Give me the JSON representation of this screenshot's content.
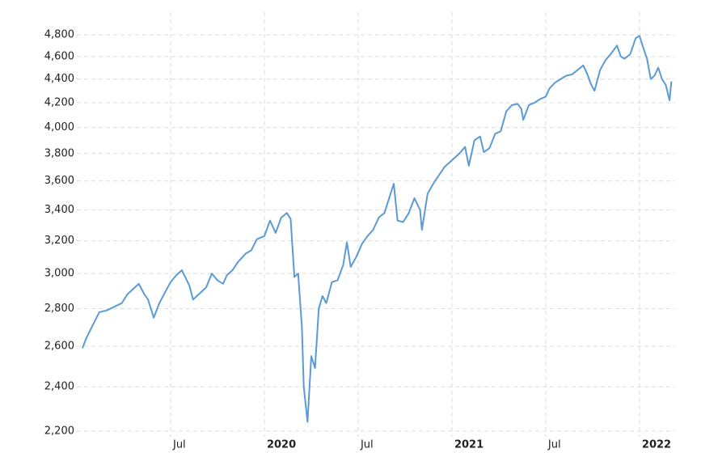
{
  "chart_data": {
    "type": "line",
    "log_scale": true,
    "grid": true,
    "xlim": [
      2019.0,
      2022.19
    ],
    "ylim": [
      2175,
      5020
    ],
    "xticks": [
      {
        "value": 2019.5,
        "label": "Jul"
      },
      {
        "value": 2020,
        "label": "2020"
      },
      {
        "value": 2020.5,
        "label": "Jul"
      },
      {
        "value": 2021,
        "label": "2021"
      },
      {
        "value": 2021.5,
        "label": "Jul"
      },
      {
        "value": 2022,
        "label": "2022"
      }
    ],
    "yticks": [
      {
        "value": 2200,
        "label": "2,200"
      },
      {
        "value": 2400,
        "label": "2,400"
      },
      {
        "value": 2600,
        "label": "2,600"
      },
      {
        "value": 2800,
        "label": "2,800"
      },
      {
        "value": 3000,
        "label": "3,000"
      },
      {
        "value": 3200,
        "label": "3,200"
      },
      {
        "value": 3400,
        "label": "3,400"
      },
      {
        "value": 3600,
        "label": "3,600"
      },
      {
        "value": 3800,
        "label": "3,800"
      },
      {
        "value": 4000,
        "label": "4,000"
      },
      {
        "value": 4200,
        "label": "4,200"
      },
      {
        "value": 4400,
        "label": "4,400"
      },
      {
        "value": 4600,
        "label": "4,600"
      },
      {
        "value": 4800,
        "label": "4,800"
      }
    ],
    "x": [
      2019.03,
      2019.05,
      2019.08,
      2019.12,
      2019.16,
      2019.2,
      2019.24,
      2019.27,
      2019.3,
      2019.33,
      2019.36,
      2019.38,
      2019.41,
      2019.44,
      2019.47,
      2019.5,
      2019.53,
      2019.56,
      2019.6,
      2019.62,
      2019.66,
      2019.69,
      2019.72,
      2019.75,
      2019.78,
      2019.8,
      2019.83,
      2019.86,
      2019.9,
      2019.93,
      2019.96,
      2020.0,
      2020.03,
      2020.06,
      2020.09,
      2020.12,
      2020.14,
      2020.16,
      2020.18,
      2020.2,
      2020.21,
      2020.23,
      2020.25,
      2020.27,
      2020.29,
      2020.31,
      2020.33,
      2020.36,
      2020.39,
      2020.42,
      2020.44,
      2020.46,
      2020.49,
      2020.52,
      2020.55,
      2020.58,
      2020.61,
      2020.64,
      2020.67,
      2020.69,
      2020.71,
      2020.74,
      2020.77,
      2020.8,
      2020.83,
      2020.84,
      2020.87,
      2020.9,
      2020.93,
      2020.96,
      2021.0,
      2021.04,
      2021.07,
      2021.09,
      2021.12,
      2021.15,
      2021.17,
      2021.2,
      2021.23,
      2021.26,
      2021.29,
      2021.32,
      2021.35,
      2021.37,
      2021.38,
      2021.41,
      2021.44,
      2021.47,
      2021.5,
      2021.52,
      2021.55,
      2021.58,
      2021.61,
      2021.64,
      2021.67,
      2021.7,
      2021.72,
      2021.74,
      2021.76,
      2021.79,
      2021.82,
      2021.85,
      2021.88,
      2021.9,
      2021.92,
      2021.95,
      2021.98,
      2022.0,
      2022.02,
      2022.04,
      2022.06,
      2022.08,
      2022.1,
      2022.12,
      2022.14,
      2022.16,
      2022.17
    ],
    "series": [
      {
        "color": "#5b9bd5",
        "values": [
          2590,
          2640,
          2700,
          2780,
          2790,
          2810,
          2830,
          2880,
          2910,
          2940,
          2880,
          2850,
          2750,
          2830,
          2890,
          2950,
          2990,
          3020,
          2930,
          2850,
          2890,
          2920,
          3000,
          2960,
          2940,
          2990,
          3020,
          3070,
          3120,
          3140,
          3210,
          3230,
          3330,
          3250,
          3350,
          3380,
          3340,
          2980,
          3000,
          2700,
          2400,
          2240,
          2550,
          2490,
          2800,
          2870,
          2830,
          2950,
          2960,
          3050,
          3190,
          3040,
          3100,
          3180,
          3230,
          3270,
          3350,
          3380,
          3500,
          3580,
          3330,
          3320,
          3380,
          3480,
          3400,
          3270,
          3510,
          3580,
          3640,
          3700,
          3750,
          3800,
          3850,
          3710,
          3900,
          3930,
          3810,
          3840,
          3950,
          3970,
          4130,
          4180,
          4190,
          4150,
          4060,
          4180,
          4200,
          4230,
          4250,
          4320,
          4370,
          4400,
          4430,
          4440,
          4480,
          4520,
          4450,
          4360,
          4300,
          4480,
          4570,
          4630,
          4700,
          4600,
          4580,
          4620,
          4770,
          4790,
          4680,
          4580,
          4400,
          4430,
          4500,
          4400,
          4350,
          4220,
          4380
        ]
      }
    ]
  }
}
